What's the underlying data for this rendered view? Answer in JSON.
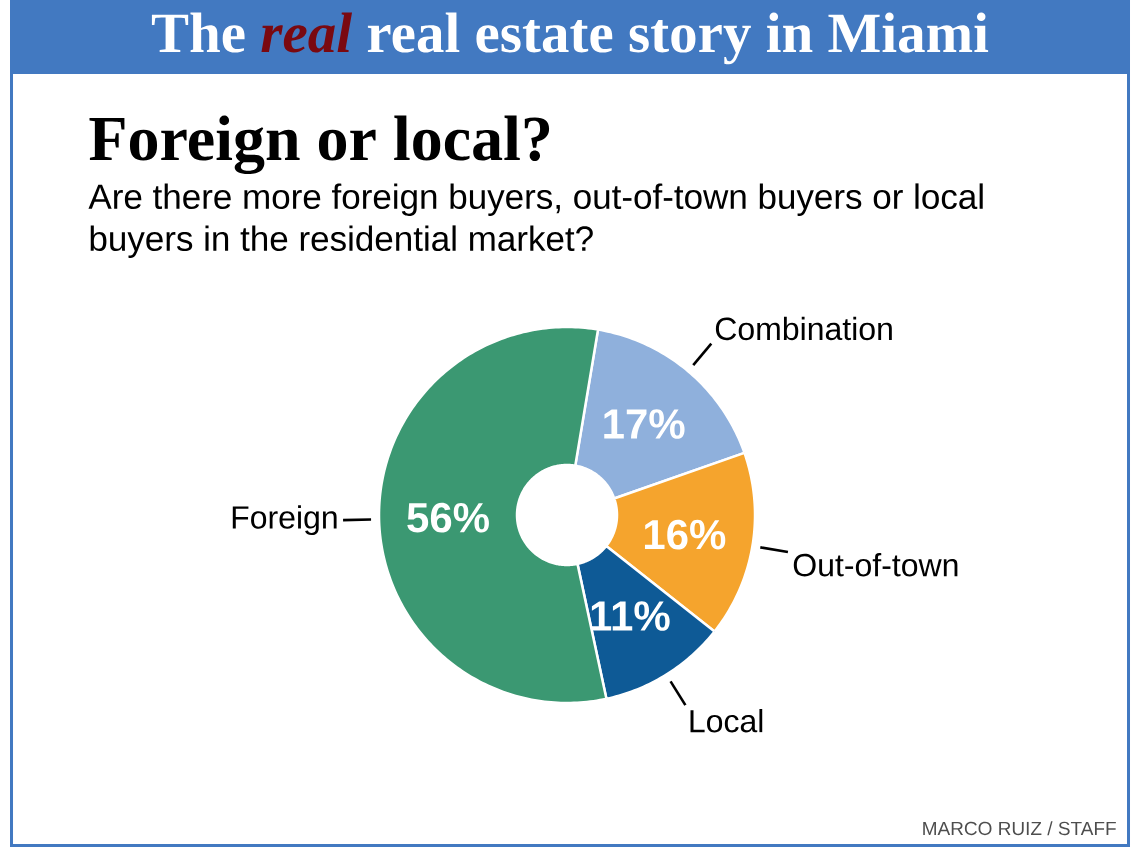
{
  "chart_data": {
    "type": "donut",
    "title": "Foreign or local?",
    "subtitle": "Are there more foreign buyers, out-of-town buyers or local buyers in the residential market?",
    "categories": [
      "Combination",
      "Out-of-town",
      "Local",
      "Foreign"
    ],
    "values": [
      17,
      16,
      11,
      56
    ],
    "colors": [
      "#8fb0dc",
      "#f5a42d",
      "#0e5a96",
      "#3b9872"
    ],
    "value_labels": [
      "17%",
      "16%",
      "11%",
      "56%"
    ],
    "annotations": [
      "The *real* real estate story in Miami",
      "MARCO RUIZ / STAFF"
    ]
  }
}
